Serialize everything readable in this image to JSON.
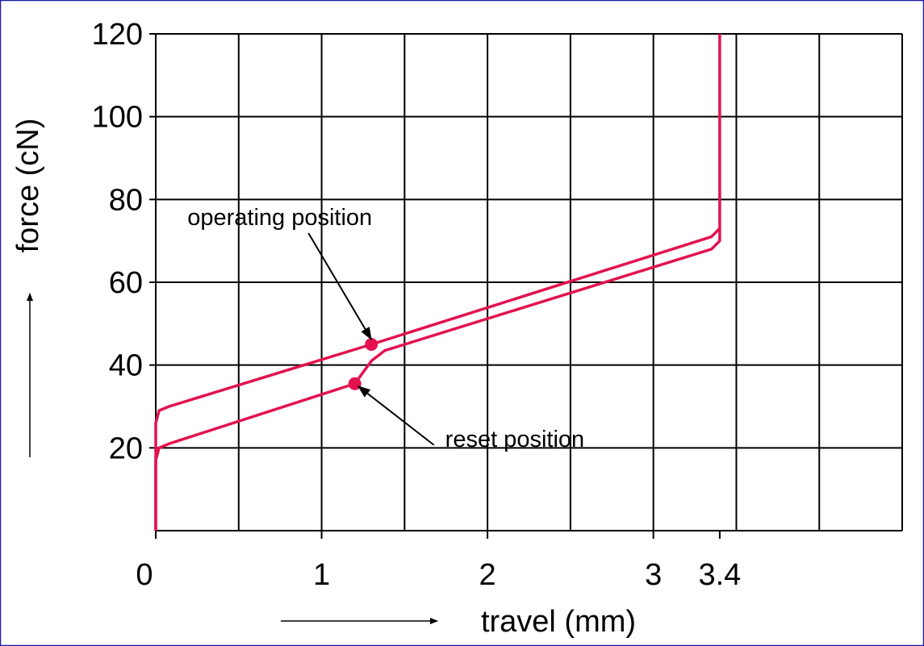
{
  "chart_data": {
    "type": "line",
    "xlabel": "travel (mm)",
    "ylabel": "force (cN)",
    "xlim": [
      0,
      4.5
    ],
    "xticks": [
      0,
      1,
      2,
      3,
      3.4
    ],
    "x_grid": [
      0,
      0.5,
      1,
      1.5,
      2,
      2.5,
      3,
      3.5,
      4,
      4.5
    ],
    "ylim": [
      0,
      120
    ],
    "yticks": [
      20,
      40,
      60,
      80,
      100,
      120
    ],
    "grid": true,
    "series": [
      {
        "color": "#e3124f",
        "x": [
          0,
          0,
          0.02,
          0.08,
          1.3,
          3.35,
          3.4,
          3.4
        ],
        "values": [
          0,
          26,
          29,
          30,
          45,
          71,
          73,
          120
        ]
      },
      {
        "color": "#e3124f",
        "x": [
          0,
          0,
          0.02,
          0.08,
          1.2,
          1.3,
          1.38,
          3.35,
          3.4,
          3.4
        ],
        "values": [
          0,
          17,
          20,
          21,
          35.5,
          41,
          43.5,
          68,
          70,
          73
        ]
      }
    ],
    "annotations": [
      {
        "text": "operating position",
        "x": 1.3,
        "y": 45
      },
      {
        "text": "reset position",
        "x": 1.2,
        "y": 35.5
      }
    ]
  }
}
